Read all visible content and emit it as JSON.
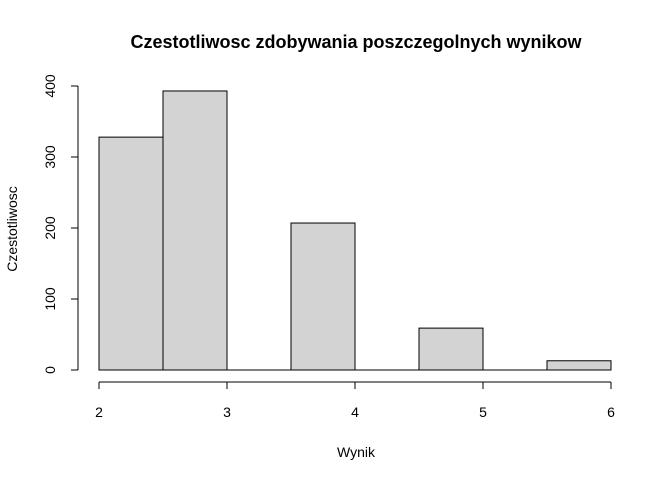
{
  "chart_data": {
    "type": "bar",
    "title": "Czestotliwosc zdobywania poszczegolnych wynikow",
    "xlabel": "Wynik",
    "ylabel": "Czestotliwosc",
    "bins": [
      {
        "x0": 2.0,
        "x1": 2.5,
        "count": 328
      },
      {
        "x0": 2.5,
        "x1": 3.0,
        "count": 393
      },
      {
        "x0": 3.0,
        "x1": 3.5,
        "count": 0
      },
      {
        "x0": 3.5,
        "x1": 4.0,
        "count": 207
      },
      {
        "x0": 4.0,
        "x1": 4.5,
        "count": 0
      },
      {
        "x0": 4.5,
        "x1": 5.0,
        "count": 59
      },
      {
        "x0": 5.0,
        "x1": 5.5,
        "count": 0
      },
      {
        "x0": 5.5,
        "x1": 6.0,
        "count": 13
      }
    ],
    "xlim": [
      2,
      6
    ],
    "ylim": [
      0,
      400
    ],
    "x_ticks": [
      "2",
      "3",
      "4",
      "5",
      "6"
    ],
    "y_ticks": [
      "0",
      "100",
      "200",
      "300",
      "400"
    ],
    "bar_color": "#d3d3d3",
    "grid": false
  }
}
